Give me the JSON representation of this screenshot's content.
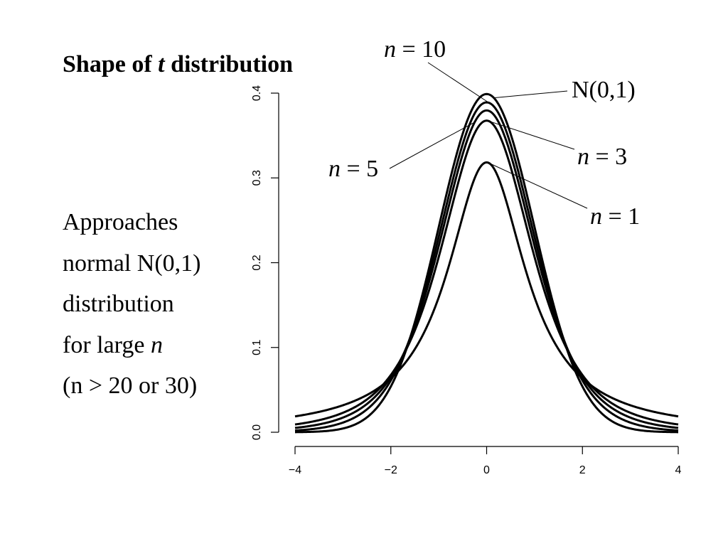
{
  "title": {
    "prefix": "Shape of ",
    "variable": "t",
    "suffix": " distribution"
  },
  "side_note": {
    "line1": "Approaches",
    "line2": "normal N(0,1)",
    "line3": "distribution",
    "line4_prefix": "for large ",
    "line4_var": "n",
    "line5": "(n > 20 or 30)"
  },
  "chart_data": {
    "type": "line",
    "title": "",
    "xlabel": "",
    "ylabel": "",
    "xlim": [
      -4,
      4
    ],
    "ylim": [
      0,
      0.4
    ],
    "grid": false,
    "x_ticks": [
      -4,
      -2,
      0,
      2,
      4
    ],
    "x_tick_labels": [
      "−4",
      "−2",
      "0",
      "2",
      "4"
    ],
    "y_ticks": [
      0,
      0.1,
      0.2,
      0.3,
      0.4
    ],
    "y_tick_labels": [
      "0.0",
      "0.1",
      "0.2",
      "0.3",
      "0.4"
    ],
    "series": [
      {
        "name": "n = 1",
        "df": 1,
        "peak": 0.318,
        "tail_at_4": 0.019
      },
      {
        "name": "n = 3",
        "df": 3,
        "peak": 0.368,
        "tail_at_4": 0.009
      },
      {
        "name": "n = 5",
        "df": 5,
        "peak": 0.38,
        "tail_at_4": 0.005
      },
      {
        "name": "n = 10",
        "df": 10,
        "peak": 0.389,
        "tail_at_4": 0.002
      },
      {
        "name": "N(0,1)",
        "df": "normal",
        "peak": 0.399,
        "tail_at_4": 0.0001
      }
    ],
    "annotations": [
      {
        "series": "n = 10",
        "var": "n",
        "text": " = 10",
        "label_side": "top-left"
      },
      {
        "series": "N(0,1)",
        "var": "",
        "text": "N(0,1)",
        "label_side": "right"
      },
      {
        "series": "n = 3",
        "var": "n",
        "text": " = 3",
        "label_side": "right"
      },
      {
        "series": "n = 5",
        "var": "n",
        "text": " = 5",
        "label_side": "left"
      },
      {
        "series": "n = 1",
        "var": "n",
        "text": " = 1",
        "label_side": "right"
      }
    ]
  }
}
